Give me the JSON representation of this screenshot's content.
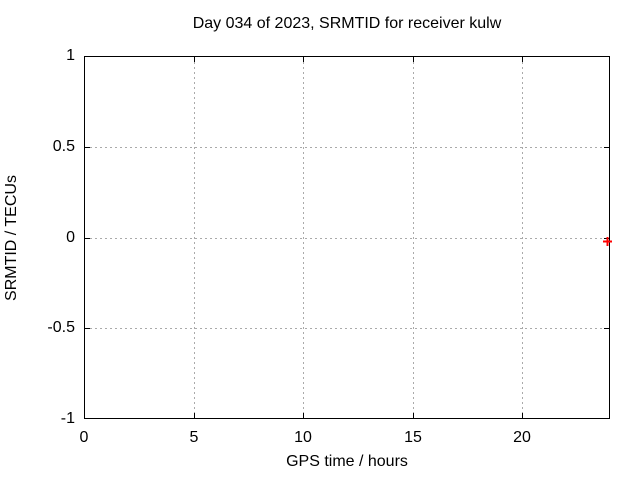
{
  "chart_data": {
    "type": "scatter",
    "title": "Day 034 of 2023, SRMTID for receiver kulw",
    "xlabel": "GPS time / hours",
    "ylabel": "SRMTID / TECUs",
    "xlim": [
      0,
      24
    ],
    "ylim": [
      -1,
      1
    ],
    "x_ticks": [
      0,
      5,
      10,
      15,
      20
    ],
    "y_ticks": [
      1,
      0.5,
      0,
      -0.5,
      -1
    ],
    "grid": true,
    "legend_position": "none",
    "series": [
      {
        "marker": "plus",
        "color": "#ff0000",
        "points": [
          {
            "x": 23.9,
            "y": 0
          }
        ]
      }
    ]
  },
  "colors": {
    "background": "#ffffff",
    "axis": "#000000",
    "grid": "#aaaaaa",
    "text": "#000000",
    "marker": "#ff0000"
  }
}
